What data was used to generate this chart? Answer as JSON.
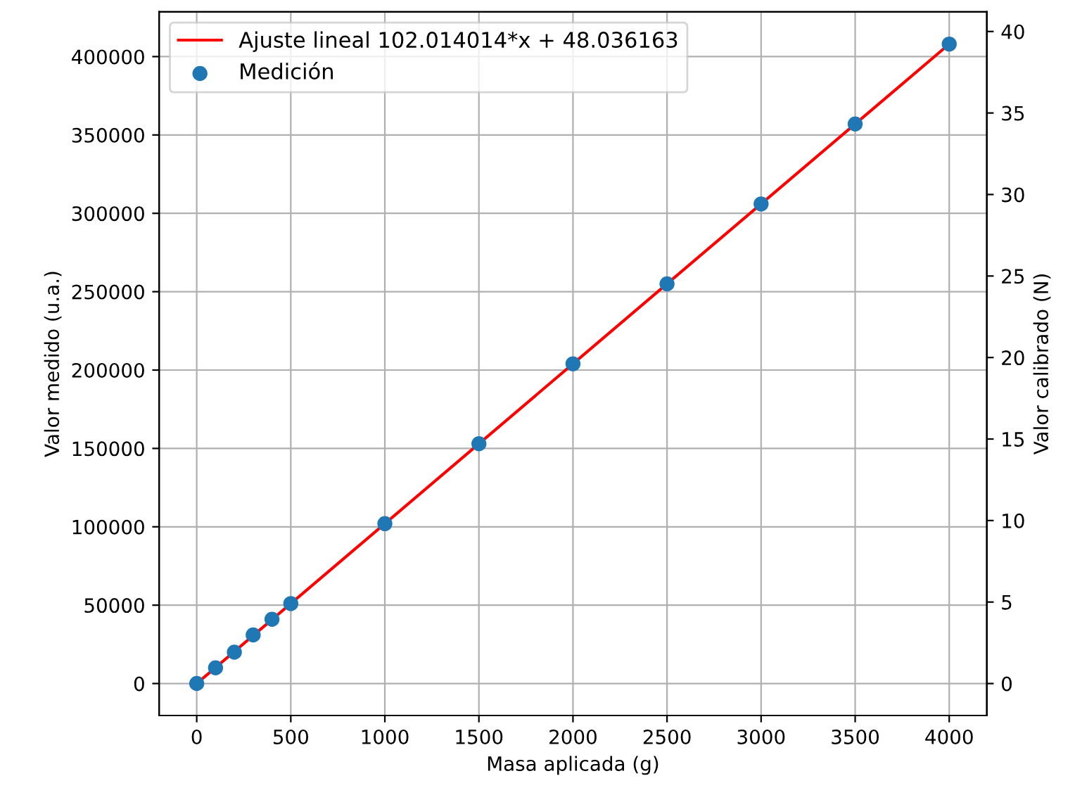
{
  "chart_data": {
    "type": "scatter",
    "xlabel": "Masa aplicada (g)",
    "ylabel": "Valor medido (u.a.)",
    "y2label": "Valor calibrado (N)",
    "series": [
      {
        "name": "Ajuste lineal 102.014014*x + 48.036163",
        "type": "line",
        "color": "#ff0000",
        "x": [
          0,
          4000
        ],
        "values": [
          0,
          408000
        ],
        "marker": "none"
      },
      {
        "name": "Medición",
        "color": "#1f77b4",
        "x": [
          0,
          100,
          200,
          300,
          400,
          500,
          1000,
          1500,
          2000,
          2500,
          3000,
          3500,
          4000
        ],
        "values": [
          0,
          10000,
          20000,
          31000,
          41000,
          51000,
          102000,
          153000,
          204000,
          255000,
          306000,
          357000,
          408000
        ],
        "marker": "circle"
      }
    ],
    "xlim": [
      -200,
      4200
    ],
    "xticks": [
      0,
      500,
      1000,
      1500,
      2000,
      2500,
      3000,
      3500,
      4000
    ],
    "ylim": [
      -20400,
      428500
    ],
    "yticks": [
      0,
      50000,
      100000,
      150000,
      200000,
      250000,
      300000,
      350000,
      400000
    ],
    "y2lim": [
      -1.96,
      41.2
    ],
    "y2ticks": [
      0,
      5,
      10,
      15,
      20,
      25,
      30,
      35,
      40
    ],
    "grid": true,
    "legend": "top left"
  }
}
